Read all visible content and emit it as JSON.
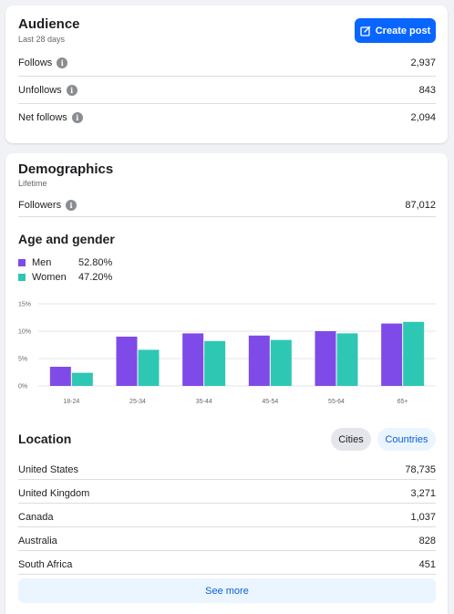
{
  "audience": {
    "title": "Audience",
    "subtitle": "Last 28 days",
    "create_post_label": "Create post",
    "metrics": [
      {
        "label": "Follows",
        "value": "2,937"
      },
      {
        "label": "Unfollows",
        "value": "843"
      },
      {
        "label": "Net follows",
        "value": "2,094"
      }
    ]
  },
  "demographics": {
    "title": "Demographics",
    "subtitle": "Lifetime",
    "followers": {
      "label": "Followers",
      "value": "87,012"
    },
    "age_gender_title": "Age and gender",
    "legend": [
      {
        "name": "Men",
        "value": "52.80%",
        "color": "#7f4be8"
      },
      {
        "name": "Women",
        "value": "47.20%",
        "color": "#2ec7b4"
      }
    ]
  },
  "chart_data": {
    "type": "bar",
    "categories": [
      "18-24",
      "25-34",
      "35-44",
      "45-54",
      "55-64",
      "65+"
    ],
    "series": [
      {
        "name": "Men",
        "values": [
          3.5,
          9.0,
          9.6,
          9.2,
          10.0,
          11.4
        ],
        "color": "#7f4be8"
      },
      {
        "name": "Women",
        "values": [
          2.4,
          6.6,
          8.2,
          8.4,
          9.6,
          11.7
        ],
        "color": "#2ec7b4"
      }
    ],
    "yticks": [
      "0%",
      "5%",
      "10%",
      "15%"
    ],
    "ylim": [
      0,
      15
    ],
    "grid": true
  },
  "location": {
    "title": "Location",
    "toggle_cities": "Cities",
    "toggle_countries": "Countries",
    "rows": [
      {
        "label": "United States",
        "value": "78,735"
      },
      {
        "label": "United Kingdom",
        "value": "3,271"
      },
      {
        "label": "Canada",
        "value": "1,037"
      },
      {
        "label": "Australia",
        "value": "828"
      },
      {
        "label": "South Africa",
        "value": "451"
      }
    ],
    "see_more_label": "See more"
  }
}
